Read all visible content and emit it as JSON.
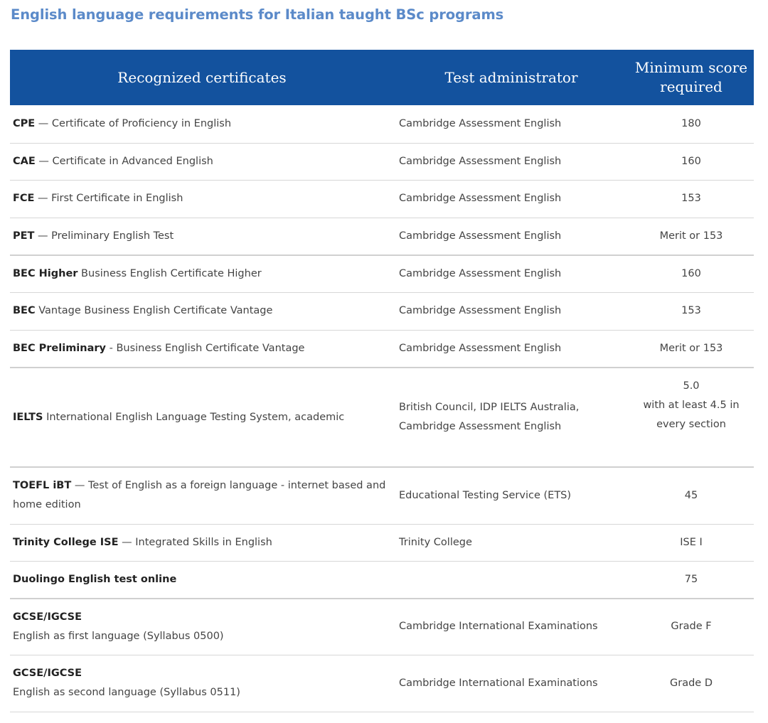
{
  "title": "English language requirements for Italian taught BSc programs",
  "table": {
    "headers": {
      "certificates": "Recognized certificates",
      "administrator": "Test administrator",
      "score": "Minimum score required"
    },
    "rows": [
      {
        "abbr": "CPE",
        "desc": " — Certificate of Proficiency in English",
        "admin": "Cambridge Assessment English",
        "score": "180"
      },
      {
        "abbr": "CAE",
        "desc": " — Certificate in Advanced English",
        "admin": "Cambridge Assessment English",
        "score": "160"
      },
      {
        "abbr": "FCE",
        "desc": " —  First Certificate in English",
        "admin": "Cambridge Assessment English",
        "score": "153"
      },
      {
        "abbr": "PET",
        "desc": " — Preliminary English Test",
        "admin": "Cambridge Assessment English",
        "score": "Merit or 153"
      },
      {
        "abbr": "BEC Higher",
        "desc": " Business English Certificate Higher",
        "admin": "Cambridge Assessment English",
        "score": "160"
      },
      {
        "abbr": "BEC",
        "desc": " Vantage Business English Certificate Vantage",
        "admin": "Cambridge Assessment English",
        "score": "153"
      },
      {
        "abbr": "BEC Preliminary",
        "desc": " - Business English Certificate Vantage",
        "admin": "Cambridge Assessment English",
        "score": "Merit or 153"
      },
      {
        "abbr": "IELTS",
        "desc": " International English Language Testing System, academic",
        "admin": "British Council, IDP IELTS Australia, Cambridge Assessment English",
        "score": "5.0",
        "score_note": "with at least 4.5 in every section"
      },
      {
        "abbr": "TOEFL iBT",
        "desc": " — Test of English as a foreign language - internet based and home edition",
        "admin": "Educational Testing Service (ETS)",
        "score": "45"
      },
      {
        "abbr": "Trinity College ISE",
        "desc": " — Integrated Skills in English",
        "admin": "Trinity College",
        "score": "ISE I"
      },
      {
        "abbr": "Duolingo English test online",
        "desc": "",
        "admin": "",
        "score": "75"
      },
      {
        "abbr": "GCSE/IGCSE",
        "desc": "English as first language (Syllabus 0500)",
        "admin": "Cambridge International Examinations",
        "score": "Grade F"
      },
      {
        "abbr": "GCSE/IGCSE",
        "desc": "English as second language (Syllabus 0511)",
        "admin": "Cambridge International Examinations",
        "score": "Grade D"
      }
    ]
  }
}
